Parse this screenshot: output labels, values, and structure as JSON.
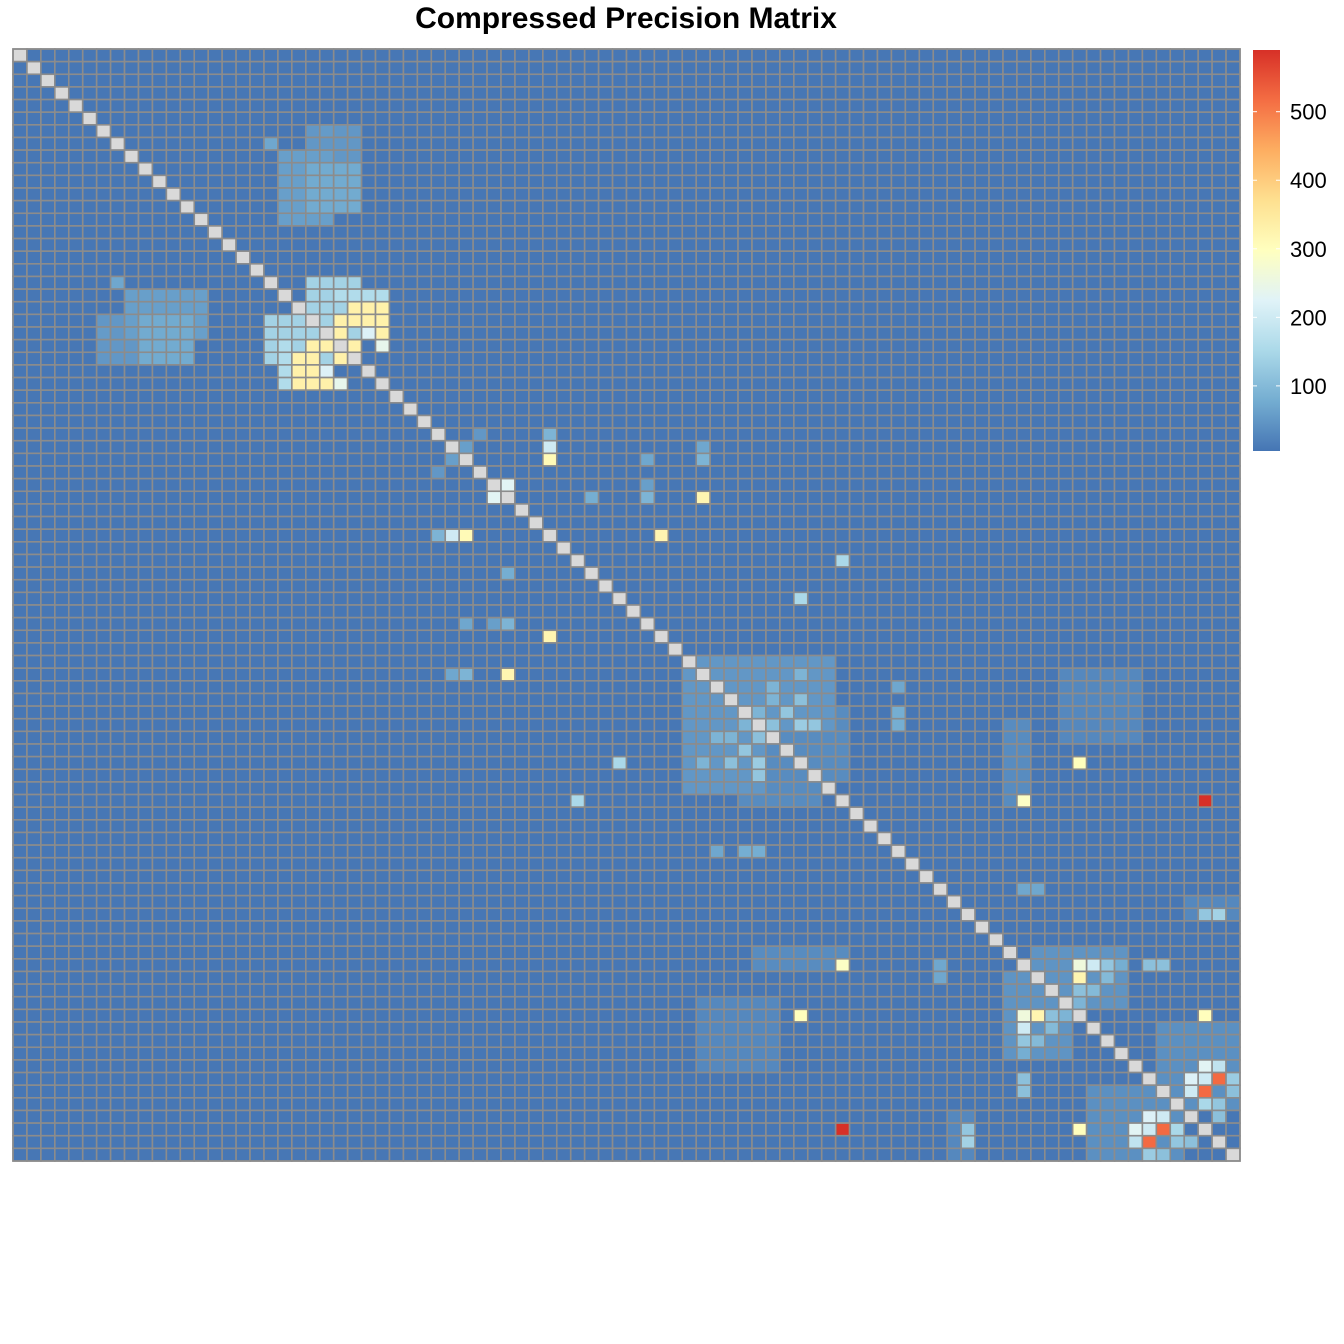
{
  "chart_data": {
    "type": "heatmap",
    "title": "Compressed Precision Matrix",
    "xlabel": "",
    "ylabel": "",
    "size": 88,
    "diagonal_value": null,
    "diagonal_color": "#d9d9d9",
    "grid": true,
    "legend": "right",
    "value_range": [
      5,
      590
    ],
    "colorbar_ticks": [
      100,
      200,
      300,
      400,
      500
    ],
    "palette": [
      "#4575b4",
      "#74add1",
      "#abd9e9",
      "#e0f3f8",
      "#ffffbf",
      "#fee090",
      "#fdae61",
      "#f46d43",
      "#d73027"
    ],
    "background_value": 8,
    "blocks": [
      {
        "rows": [
          8,
          13
        ],
        "cols": [
          19,
          22
        ],
        "value": 60
      },
      {
        "rows": [
          7,
          7
        ],
        "cols": [
          18,
          18
        ],
        "value": 70
      },
      {
        "rows": [
          21,
          24
        ],
        "cols": [
          6,
          12
        ],
        "value": 50
      },
      {
        "rows": [
          21,
          24
        ],
        "cols": [
          9,
          12
        ],
        "value": 75
      },
      {
        "rows": [
          22,
          23
        ],
        "cols": [
          6,
          7
        ],
        "value": 40
      },
      {
        "rows": [
          21,
          24
        ],
        "cols": [
          18,
          23
        ],
        "value": 140
      },
      {
        "rows": [
          52,
          57
        ],
        "cols": [
          49,
          59
        ],
        "value": 35
      },
      {
        "rows": [
          49,
          58
        ],
        "cols": [
          48,
          53
        ],
        "value": 50
      },
      {
        "rows": [
          53,
          59
        ],
        "cols": [
          71,
          72
        ],
        "value": 35
      },
      {
        "rows": [
          73,
          79
        ],
        "cols": [
          71,
          75
        ],
        "value": 45
      },
      {
        "rows": [
          82,
          87
        ],
        "cols": [
          77,
          83
        ],
        "value": 40
      },
      {
        "rows": [
          84,
          88
        ],
        "cols": [
          67,
          68
        ],
        "value": 30
      },
      {
        "rows": [
          75,
          80
        ],
        "cols": [
          49,
          54
        ],
        "value": 30
      }
    ],
    "cells": [
      {
        "row": 22,
        "col": 19,
        "value": 130
      },
      {
        "row": 22,
        "col": 20,
        "value": 130
      },
      {
        "row": 22,
        "col": 21,
        "value": 130
      },
      {
        "row": 22,
        "col": 22,
        "value": 130
      },
      {
        "row": 23,
        "col": 19,
        "value": 160
      },
      {
        "row": 23,
        "col": 21,
        "value": 330
      },
      {
        "row": 23,
        "col": 22,
        "value": 330
      },
      {
        "row": 23,
        "col": 23,
        "value": 330
      },
      {
        "row": 24,
        "col": 19,
        "value": 160
      },
      {
        "row": 24,
        "col": 20,
        "value": 330
      },
      {
        "row": 24,
        "col": 21,
        "value": 330
      },
      {
        "row": 24,
        "col": 23,
        "value": 330
      },
      {
        "row": 25,
        "col": 19,
        "value": 160
      },
      {
        "row": 25,
        "col": 20,
        "value": 330
      },
      {
        "row": 25,
        "col": 21,
        "value": 330
      },
      {
        "row": 25,
        "col": 22,
        "value": 220
      },
      {
        "row": 26,
        "col": 19,
        "value": 160
      },
      {
        "row": 26,
        "col": 20,
        "value": 330
      },
      {
        "row": 26,
        "col": 21,
        "value": 330
      },
      {
        "row": 26,
        "col": 22,
        "value": 330
      },
      {
        "row": 26,
        "col": 23,
        "value": 240
      },
      {
        "row": 21,
        "col": 20,
        "value": 120
      },
      {
        "row": 21,
        "col": 21,
        "value": 120
      },
      {
        "row": 21,
        "col": 22,
        "value": 120
      },
      {
        "row": 21,
        "col": 23,
        "value": 120
      },
      {
        "row": 22,
        "col": 6,
        "value": 55
      },
      {
        "row": 32,
        "col": 31,
        "value": 60
      },
      {
        "row": 32,
        "col": 45,
        "value": 70
      },
      {
        "row": 33,
        "col": 30,
        "value": 50
      },
      {
        "row": 34,
        "col": 35,
        "value": 230
      },
      {
        "row": 35,
        "col": 35,
        "value": 320
      },
      {
        "row": 35,
        "col": 45,
        "value": 90
      },
      {
        "row": 34,
        "col": 45,
        "value": 60
      },
      {
        "row": 38,
        "col": 30,
        "value": 90
      },
      {
        "row": 38,
        "col": 31,
        "value": 200
      },
      {
        "row": 38,
        "col": 32,
        "value": 310
      },
      {
        "row": 38,
        "col": 38,
        "value": 80
      },
      {
        "row": 38,
        "col": 46,
        "value": 320
      },
      {
        "row": 41,
        "col": 35,
        "value": 80
      },
      {
        "row": 43,
        "col": 56,
        "value": 150
      },
      {
        "row": 49,
        "col": 31,
        "value": 70
      },
      {
        "row": 49,
        "col": 32,
        "value": 90
      },
      {
        "row": 49,
        "col": 35,
        "value": 320
      },
      {
        "row": 53,
        "col": 52,
        "value": 90
      },
      {
        "row": 53,
        "col": 53,
        "value": 110
      },
      {
        "row": 54,
        "col": 50,
        "value": 90
      },
      {
        "row": 54,
        "col": 51,
        "value": 90
      },
      {
        "row": 54,
        "col": 53,
        "value": 110
      },
      {
        "row": 55,
        "col": 52,
        "value": 120
      },
      {
        "row": 56,
        "col": 49,
        "value": 90
      },
      {
        "row": 56,
        "col": 51,
        "value": 110
      },
      {
        "row": 56,
        "col": 53,
        "value": 130
      },
      {
        "row": 57,
        "col": 53,
        "value": 120
      },
      {
        "row": 59,
        "col": 40,
        "value": 150
      },
      {
        "row": 59,
        "col": 72,
        "value": 290
      },
      {
        "row": 59,
        "col": 85,
        "value": 590
      },
      {
        "row": 63,
        "col": 50,
        "value": 70
      },
      {
        "row": 63,
        "col": 52,
        "value": 80
      },
      {
        "row": 63,
        "col": 53,
        "value": 80
      },
      {
        "row": 66,
        "col": 72,
        "value": 70
      },
      {
        "row": 66,
        "col": 73,
        "value": 70
      },
      {
        "row": 72,
        "col": 81,
        "value": 110
      },
      {
        "row": 72,
        "col": 82,
        "value": 110
      },
      {
        "row": 76,
        "col": 56,
        "value": 300
      },
      {
        "row": 76,
        "col": 72,
        "value": 260
      },
      {
        "row": 76,
        "col": 73,
        "value": 320
      },
      {
        "row": 76,
        "col": 74,
        "value": 110
      },
      {
        "row": 76,
        "col": 75,
        "value": 90
      },
      {
        "row": 76,
        "col": 85,
        "value": 300
      },
      {
        "row": 77,
        "col": 72,
        "value": 200
      },
      {
        "row": 77,
        "col": 74,
        "value": 100
      },
      {
        "row": 78,
        "col": 72,
        "value": 120
      },
      {
        "row": 78,
        "col": 73,
        "value": 100
      },
      {
        "row": 79,
        "col": 72,
        "value": 80
      },
      {
        "row": 84,
        "col": 81,
        "value": 220
      },
      {
        "row": 84,
        "col": 82,
        "value": 200
      },
      {
        "row": 85,
        "col": 80,
        "value": 230
      },
      {
        "row": 85,
        "col": 81,
        "value": 200
      },
      {
        "row": 85,
        "col": 82,
        "value": 520
      },
      {
        "row": 85,
        "col": 83,
        "value": 150
      },
      {
        "row": 86,
        "col": 80,
        "value": 180
      },
      {
        "row": 86,
        "col": 81,
        "value": 520
      },
      {
        "row": 86,
        "col": 83,
        "value": 120
      },
      {
        "row": 86,
        "col": 84,
        "value": 110
      },
      {
        "row": 87,
        "col": 81,
        "value": 130
      },
      {
        "row": 87,
        "col": 82,
        "value": 110
      },
      {
        "row": 88,
        "col": 81,
        "value": 100
      },
      {
        "row": 88,
        "col": 82,
        "value": 100
      },
      {
        "row": 85,
        "col": 68,
        "value": 120
      },
      {
        "row": 86,
        "col": 68,
        "value": 140
      },
      {
        "row": 90,
        "col": 56,
        "value": 590
      },
      {
        "row": 90,
        "col": 72,
        "value": 300
      }
    ]
  }
}
